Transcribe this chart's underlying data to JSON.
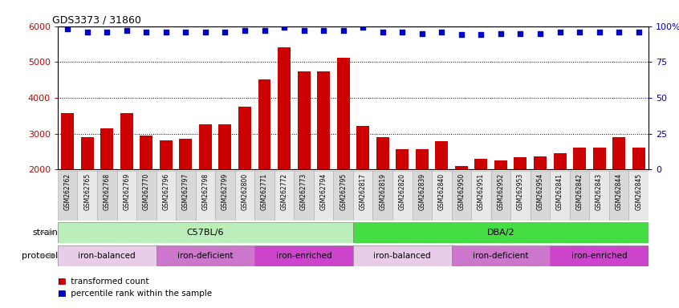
{
  "title": "GDS3373 / 31860",
  "samples": [
    "GSM262762",
    "GSM262765",
    "GSM262768",
    "GSM262769",
    "GSM262770",
    "GSM262796",
    "GSM262797",
    "GSM262798",
    "GSM262799",
    "GSM262800",
    "GSM262771",
    "GSM262772",
    "GSM262773",
    "GSM262794",
    "GSM262795",
    "GSM262817",
    "GSM262819",
    "GSM262820",
    "GSM262839",
    "GSM262840",
    "GSM262950",
    "GSM262951",
    "GSM262952",
    "GSM262953",
    "GSM262954",
    "GSM262841",
    "GSM262842",
    "GSM262843",
    "GSM262844",
    "GSM262845"
  ],
  "bar_values": [
    3580,
    2890,
    3150,
    3580,
    2950,
    2820,
    2860,
    3250,
    3250,
    3760,
    4520,
    5400,
    4740,
    4730,
    5120,
    3220,
    2890,
    2560,
    2560,
    2790,
    2100,
    2300,
    2250,
    2340,
    2360,
    2450,
    2610,
    2610,
    2900,
    2620
  ],
  "percentile_values": [
    98,
    96,
    96,
    97,
    96,
    96,
    96,
    96,
    96,
    97,
    97,
    99,
    97,
    97,
    97,
    99,
    96,
    96,
    95,
    96,
    94,
    94,
    95,
    95,
    95,
    96,
    96,
    96,
    96,
    96
  ],
  "ylim_left": [
    2000,
    6000
  ],
  "ylim_right": [
    0,
    100
  ],
  "yticks_left": [
    2000,
    3000,
    4000,
    5000,
    6000
  ],
  "yticks_right": [
    0,
    25,
    50,
    75,
    100
  ],
  "bar_color": "#cc0000",
  "dot_color": "#0000cc",
  "background_color": "#ffffff",
  "plot_bg_color": "#ffffff",
  "tick_box_color_odd": "#d8d8d8",
  "tick_box_color_even": "#e8e8e8",
  "strain_groups": [
    {
      "label": "C57BL/6",
      "start": 0,
      "end": 15,
      "color": "#bbeebb"
    },
    {
      "label": "DBA/2",
      "start": 15,
      "end": 30,
      "color": "#44dd44"
    }
  ],
  "protocol_groups": [
    {
      "label": "iron-balanced",
      "start": 0,
      "end": 5,
      "color": "#e8cce8"
    },
    {
      "label": "iron-deficient",
      "start": 5,
      "end": 10,
      "color": "#cc77cc"
    },
    {
      "label": "iron-enriched",
      "start": 10,
      "end": 15,
      "color": "#cc44cc"
    },
    {
      "label": "iron-balanced",
      "start": 15,
      "end": 20,
      "color": "#e8cce8"
    },
    {
      "label": "iron-deficient",
      "start": 20,
      "end": 25,
      "color": "#cc77cc"
    },
    {
      "label": "iron-enriched",
      "start": 25,
      "end": 30,
      "color": "#cc44cc"
    }
  ]
}
